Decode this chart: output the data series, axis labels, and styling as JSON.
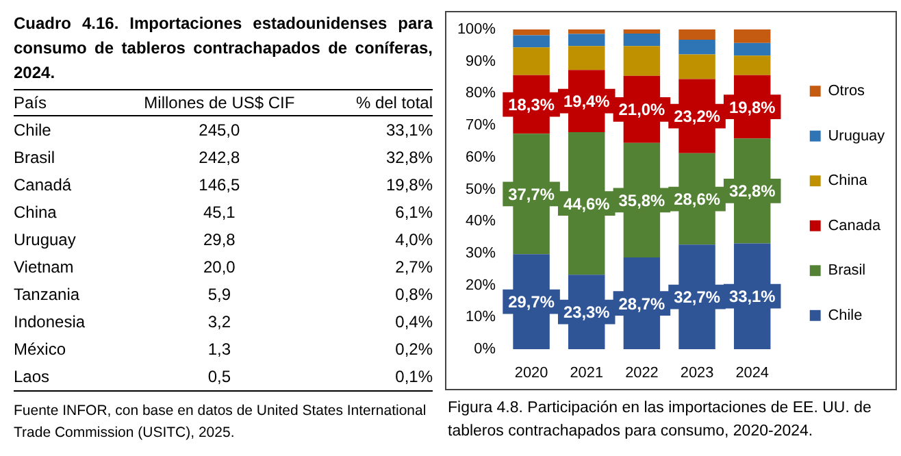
{
  "chart_data": [
    {
      "type": "other",
      "title": "Cuadro 4.16. Importaciones estadounidenses para consumo de tableros contrachapados de coníferas, 2024.",
      "xlabel": "País",
      "categories": [
        "Chile",
        "Brasil",
        "Canadá",
        "China",
        "Uruguay",
        "Vietnam",
        "Tanzania",
        "Indonesia",
        "México",
        "Laos"
      ],
      "series": [
        {
          "name": "Millones de US$ CIF",
          "values": [
            245.0,
            242.8,
            146.5,
            45.1,
            29.8,
            20.0,
            5.9,
            3.2,
            1.3,
            0.5
          ],
          "value_labels": [
            "245,0",
            "242,8",
            "146,5",
            "45,1",
            "29,8",
            "20,0",
            "5,9",
            "3,2",
            "1,3",
            "0,5"
          ]
        },
        {
          "name": "% del total",
          "values": [
            33.1,
            32.8,
            19.8,
            6.1,
            4.0,
            2.7,
            0.8,
            0.4,
            0.2,
            0.1
          ],
          "value_labels": [
            "33,1%",
            "32,8%",
            "19,8%",
            "6,1%",
            "4,0%",
            "2,7%",
            "0,8%",
            "0,4%",
            "0,2%",
            "0,1%"
          ]
        }
      ],
      "annotations": [
        "Fuente INFOR, con base en datos de United States International Trade Commission (USITC), 2025."
      ]
    },
    {
      "type": "bar",
      "stacked": true,
      "categories": [
        "2020",
        "2021",
        "2022",
        "2023",
        "2024"
      ],
      "ylim": [
        0,
        100
      ],
      "yticks": [
        {
          "value": 0,
          "label": "0%"
        },
        {
          "value": 10,
          "label": "10%"
        },
        {
          "value": 20,
          "label": "20%"
        },
        {
          "value": 30,
          "label": "30%"
        },
        {
          "value": 40,
          "label": "40%"
        },
        {
          "value": 50,
          "label": "50%"
        },
        {
          "value": 60,
          "label": "60%"
        },
        {
          "value": 70,
          "label": "70%"
        },
        {
          "value": 80,
          "label": "80%"
        },
        {
          "value": 90,
          "label": "90%"
        },
        {
          "value": 100,
          "label": "100%"
        }
      ],
      "legend": "right",
      "series": [
        {
          "name": "Chile",
          "color": "#2f5597",
          "values": [
            29.7,
            23.3,
            28.7,
            32.7,
            33.1
          ],
          "value_labels": [
            "29,7%",
            "23,3%",
            "28,7%",
            "32,7%",
            "33,1%"
          ]
        },
        {
          "name": "Brasil",
          "color": "#548235",
          "values": [
            37.7,
            44.6,
            35.8,
            28.6,
            32.8
          ],
          "value_labels": [
            "37,7%",
            "44,6%",
            "35,8%",
            "28,6%",
            "32,8%"
          ]
        },
        {
          "name": "Canada",
          "color": "#c00000",
          "values": [
            18.3,
            19.4,
            21.0,
            23.2,
            19.8
          ],
          "value_labels": [
            "18,3%",
            "19,4%",
            "21,0%",
            "23,2%",
            "19,8%"
          ]
        },
        {
          "name": "China",
          "color": "#bf9000",
          "values": [
            8.7,
            7.5,
            9.3,
            7.7,
            6.1
          ]
        },
        {
          "name": "Uruguay",
          "color": "#2e75b6",
          "values": [
            3.8,
            3.8,
            3.9,
            4.6,
            4.0
          ]
        },
        {
          "name": "Otros",
          "color": "#c55a11",
          "values": [
            1.8,
            1.4,
            1.3,
            3.2,
            4.2
          ]
        }
      ],
      "annotations": [
        "Figura 4.8. Participación en las importaciones de EE. UU. de tableros contrachapados para consumo, 2020-2024."
      ]
    }
  ]
}
